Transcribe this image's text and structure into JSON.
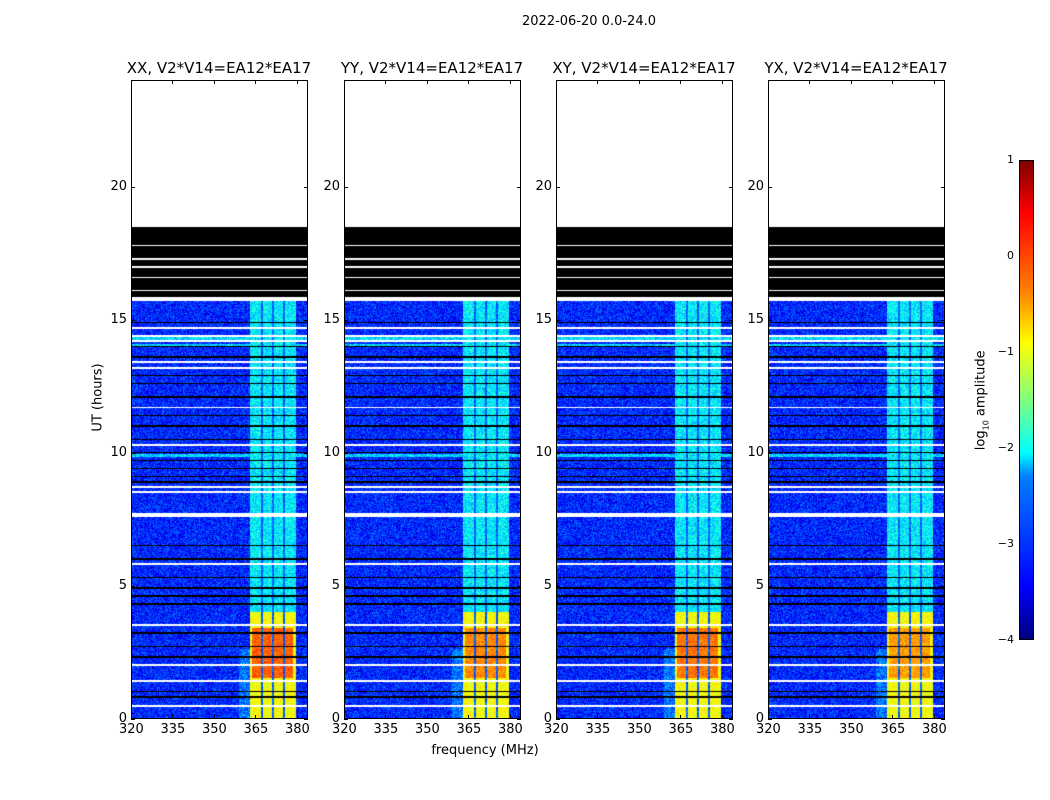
{
  "chart_data": {
    "type": "heatmap",
    "title": "2022-06-20 0.0-24.0",
    "xlabel": "frequency (MHz)",
    "ylabel": "UT (hours)",
    "xlim": [
      320,
      384
    ],
    "ylim": [
      0,
      24
    ],
    "xticks": [
      320,
      335,
      350,
      365,
      380
    ],
    "yticks": [
      0,
      5,
      10,
      15,
      20
    ],
    "colorbar": {
      "label": "log10 amplitude",
      "label_main": "log",
      "label_sub": "10",
      "label_rest": " amplitude",
      "range": [
        -4,
        1
      ],
      "ticks": [
        1,
        0,
        -1,
        -2,
        -3,
        -4
      ],
      "tick_labels": [
        "1",
        "0",
        "−1",
        "−2",
        "−3",
        "−4"
      ],
      "colormap": "jet"
    },
    "panels": [
      {
        "title": "XX, V2*V14=EA12*EA17",
        "peak_level": -0.1
      },
      {
        "title": "YY, V2*V14=EA12*EA17",
        "peak_level": -0.3
      },
      {
        "title": "XY, V2*V14=EA12*EA17",
        "peak_level": -0.2
      },
      {
        "title": "YX, V2*V14=EA12*EA17",
        "peak_level": -0.4
      }
    ],
    "background_level": -3.2,
    "rfi_band_mhz": [
      363,
      380
    ],
    "rfi_band_level_late": -2.2,
    "rfi_band_level_early": -0.9,
    "rfi_early_until_hours": 4.0,
    "rfi_subband_gaps_mhz": [
      367.5,
      371.5,
      375.5
    ],
    "data_end_hours": 15.7,
    "flagged_block_hours": [
      15.85,
      18.5
    ],
    "flagged_block_white_lines_hours": [
      16.1,
      16.6,
      17.0,
      17.3,
      17.8
    ],
    "white_gap_hours": [
      0.45,
      1.4,
      2.0,
      3.5,
      5.8,
      7.6,
      7.7,
      8.5,
      8.7,
      10.3,
      11.7,
      13.2,
      13.4,
      14.2,
      14.4,
      14.7
    ],
    "flagged_line_hours": [
      0.8,
      1.0,
      2.3,
      2.7,
      3.2,
      4.3,
      4.6,
      4.9,
      5.3,
      6.0,
      6.5,
      8.9,
      9.1,
      9.4,
      9.7,
      10.0,
      10.5,
      11.0,
      11.4,
      12.1,
      12.6,
      12.9,
      13.6,
      14.0,
      14.9
    ],
    "bright_row_hours": [
      14.3,
      14.05,
      9.9
    ]
  }
}
